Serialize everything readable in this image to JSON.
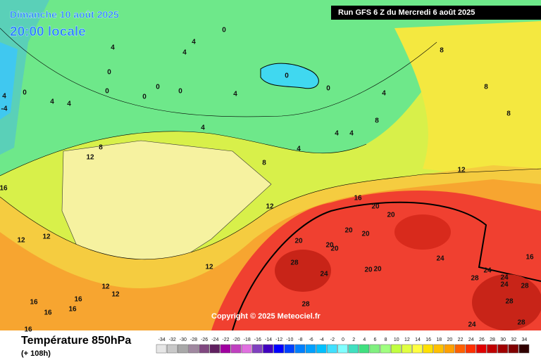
{
  "header": {
    "valid_date": "Dimanche 10 août 2025",
    "local_time": "20:00 locale",
    "run": "Run GFS 6 Z du Mercredi 6 août 2025",
    "copyright": "Copyright © 2025 Meteociel.fr"
  },
  "footer": {
    "parameter": "Température 850hPa",
    "lead_time": "(+ 108h)"
  },
  "legend": {
    "values": [
      -34,
      -32,
      -30,
      -28,
      -26,
      -24,
      -22,
      -20,
      -18,
      -16,
      -14,
      -12,
      -10,
      -8,
      -6,
      -4,
      -2,
      0,
      2,
      4,
      6,
      8,
      10,
      12,
      14,
      16,
      18,
      20,
      22,
      24,
      26,
      28,
      30,
      32,
      34
    ],
    "colors": [
      "#e6e6e6",
      "#c8c8c8",
      "#a8a8a8",
      "#a088a0",
      "#804880",
      "#602060",
      "#a000a0",
      "#c040c0",
      "#e070e0",
      "#8040c0",
      "#4000c0",
      "#0000ff",
      "#0040ff",
      "#0080ff",
      "#00a0ff",
      "#00c0ff",
      "#40e0ff",
      "#80ffff",
      "#40e0c0",
      "#40e080",
      "#80f080",
      "#a0ff80",
      "#c0ff40",
      "#e0ff40",
      "#ffff40",
      "#ffe000",
      "#ffc000",
      "#ffa000",
      "#ff6000",
      "#ff3000",
      "#e00000",
      "#c00000",
      "#a00000",
      "#800000",
      "#300000"
    ]
  },
  "contour_labels": [
    4,
    0,
    0,
    0,
    0,
    0,
    4,
    4,
    0,
    -4,
    4,
    0,
    4,
    4,
    0,
    0,
    4,
    4,
    8,
    12,
    16,
    8,
    8,
    8,
    4,
    8,
    4,
    4,
    4,
    8,
    12,
    16,
    12,
    20,
    20,
    20,
    20,
    20,
    20,
    20,
    12,
    12,
    12,
    12,
    12,
    16,
    16,
    16,
    16,
    16,
    28,
    24,
    20,
    20,
    24,
    16,
    24,
    24,
    24,
    28,
    28,
    28,
    28,
    24,
    28
  ]
}
